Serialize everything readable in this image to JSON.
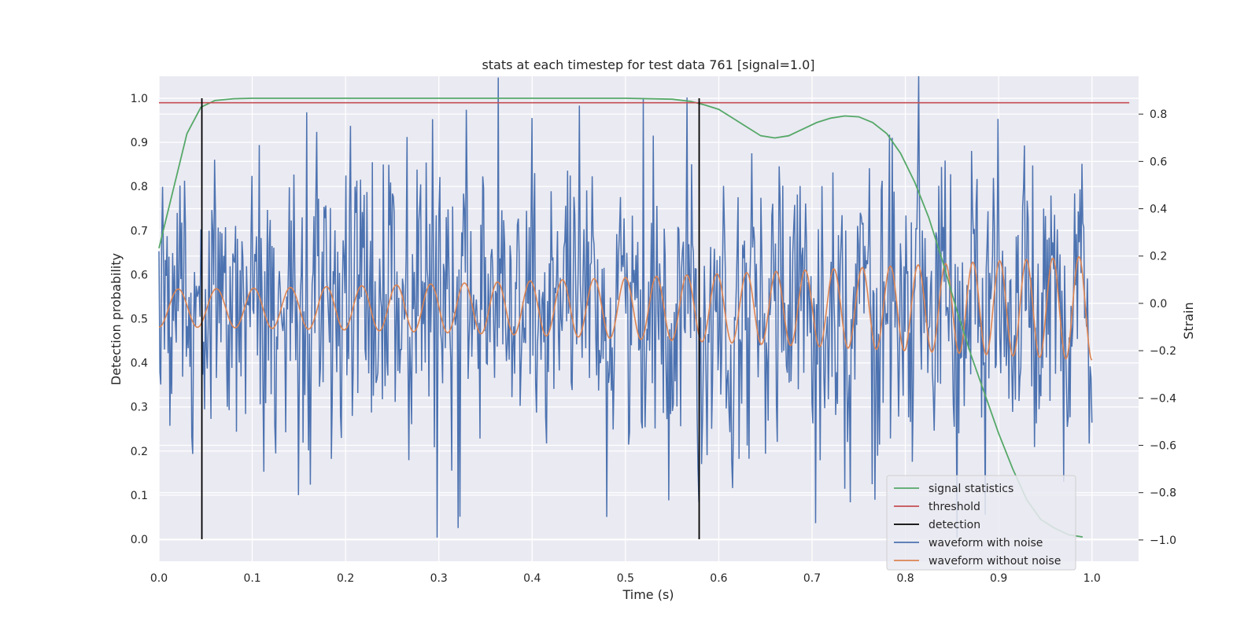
{
  "chart_data": {
    "type": "line",
    "title": "stats at each timestep for test data 761 [signal=1.0]",
    "xlabel": "Time (s)",
    "ylabel_left": "Detection probability",
    "ylabel_right": "Strain",
    "xlim": [
      0.0,
      1.05
    ],
    "ylim_left": [
      -0.05,
      1.05
    ],
    "ylim_right": [
      -1.09,
      0.96
    ],
    "x_ticks": [
      "0.0",
      "0.1",
      "0.2",
      "0.3",
      "0.4",
      "0.5",
      "0.6",
      "0.7",
      "0.8",
      "0.9",
      "1.0"
    ],
    "y_left_ticks": [
      "0.0",
      "0.1",
      "0.2",
      "0.3",
      "0.4",
      "0.5",
      "0.6",
      "0.7",
      "0.8",
      "0.9",
      "1.0"
    ],
    "y_right_ticks": [
      "−1.0",
      "−0.8",
      "−0.6",
      "−0.4",
      "−0.2",
      "0.0",
      "0.2",
      "0.4",
      "0.6",
      "0.8"
    ],
    "grid": true,
    "legend_position": "lower-right",
    "colors": {
      "signal_statistics": "#55a868",
      "threshold": "#c44e52",
      "detection": "#000000",
      "waveform_with_noise": "#4c72b0",
      "waveform_without_noise": "#dd8452",
      "plot_background": "#eaeaf2",
      "grid": "#ffffff"
    },
    "legend": [
      {
        "key": "signal_statistics",
        "label": "signal statistics"
      },
      {
        "key": "threshold",
        "label": "threshold"
      },
      {
        "key": "detection",
        "label": "detection"
      },
      {
        "key": "waveform_with_noise",
        "label": "waveform with noise"
      },
      {
        "key": "waveform_without_noise",
        "label": "waveform without noise"
      }
    ],
    "series": {
      "signal_statistics": {
        "axis": "left",
        "x": [
          0.0,
          0.015,
          0.03,
          0.045,
          0.06,
          0.08,
          0.1,
          0.2,
          0.3,
          0.4,
          0.5,
          0.55,
          0.57,
          0.585,
          0.6,
          0.615,
          0.63,
          0.645,
          0.66,
          0.675,
          0.69,
          0.705,
          0.72,
          0.735,
          0.75,
          0.765,
          0.78,
          0.795,
          0.81,
          0.825,
          0.84,
          0.855,
          0.87,
          0.885,
          0.9,
          0.915,
          0.93,
          0.945,
          0.96,
          0.975,
          0.99
        ],
        "y": [
          0.66,
          0.79,
          0.92,
          0.98,
          0.995,
          0.999,
          1.0,
          1.0,
          1.0,
          1.0,
          1.0,
          0.998,
          0.993,
          0.985,
          0.975,
          0.955,
          0.935,
          0.915,
          0.91,
          0.915,
          0.93,
          0.945,
          0.955,
          0.96,
          0.958,
          0.945,
          0.92,
          0.875,
          0.81,
          0.73,
          0.63,
          0.52,
          0.42,
          0.33,
          0.24,
          0.16,
          0.09,
          0.045,
          0.025,
          0.01,
          0.005
        ]
      },
      "threshold": {
        "axis": "left",
        "y": 0.99,
        "x_range": [
          0.0,
          1.04
        ]
      },
      "detection": {
        "axis": "left",
        "x": [
          0.046,
          0.579
        ],
        "y_range": [
          0.0,
          1.0
        ]
      },
      "waveform_with_noise": {
        "axis": "right",
        "x_range": [
          0.0,
          1.0
        ],
        "n_points": 1024,
        "std": 0.3,
        "range": [
          -0.99,
          0.96
        ]
      },
      "waveform_without_noise": {
        "axis": "right",
        "x_range": [
          0.0,
          1.0
        ],
        "frequency_start_hz": 24,
        "frequency_end_hz": 36,
        "amplitude_start": 0.08,
        "amplitude_end": 0.22,
        "offset": -0.02
      }
    }
  }
}
